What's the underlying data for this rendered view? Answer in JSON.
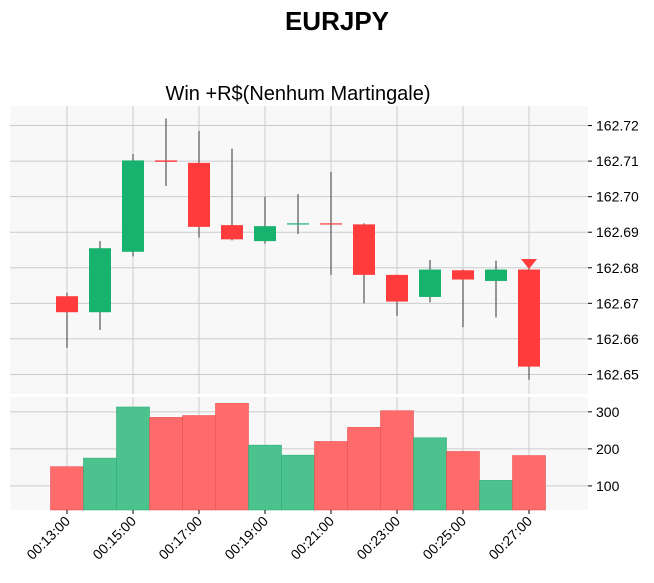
{
  "title": "EURJPY",
  "chart_data": {
    "type": "candlestick",
    "subtitle": "Win +R$(Nenhum Martingale)",
    "times": [
      "00:13:00",
      "00:14:00",
      "00:15:00",
      "00:16:00",
      "00:17:00",
      "00:18:00",
      "00:19:00",
      "00:20:00",
      "00:21:00",
      "00:22:00",
      "00:23:00",
      "00:24:00",
      "00:25:00",
      "00:26:00",
      "00:27:00"
    ],
    "x_tick_labels": [
      "00:13:00",
      "00:15:00",
      "00:17:00",
      "00:19:00",
      "00:21:00",
      "00:23:00",
      "00:25:00",
      "00:27:00"
    ],
    "open": [
      162.672,
      162.6675,
      162.6845,
      162.7102,
      162.7095,
      162.692,
      162.6875,
      162.6923,
      162.6925,
      162.6922,
      162.678,
      162.6718,
      162.6793,
      162.6763,
      162.6795
    ],
    "high": [
      162.673,
      162.6875,
      162.712,
      162.722,
      162.7185,
      162.7135,
      162.7,
      162.7007,
      162.707,
      162.6925,
      162.678,
      162.6822,
      162.6795,
      162.682,
      162.6805
    ],
    "low": [
      162.6575,
      162.6625,
      162.6832,
      162.703,
      162.6885,
      162.6877,
      162.6868,
      162.6895,
      162.678,
      162.67,
      162.6665,
      162.6703,
      162.6633,
      162.666,
      162.6485
    ],
    "close": [
      162.6675,
      162.6855,
      162.7102,
      162.7098,
      162.6915,
      162.688,
      162.6917,
      162.6925,
      162.6922,
      162.678,
      162.6705,
      162.6795,
      162.6767,
      162.6795,
      162.6522
    ],
    "volume": [
      152,
      175,
      313,
      285,
      290,
      323,
      210,
      183,
      220,
      258,
      303,
      230,
      193,
      115,
      182
    ],
    "price_ylim": [
      162.6445,
      162.7255
    ],
    "price_ticks": [
      "162.65",
      "162.66",
      "162.67",
      "162.68",
      "162.69",
      "162.70",
      "162.71",
      "162.72"
    ],
    "volume_ylim": [
      35,
      340
    ],
    "volume_ticks": [
      100,
      200,
      300
    ],
    "marker": {
      "time": "00:27:00",
      "price": 162.6805,
      "shape": "triangle-down"
    },
    "grid": true,
    "y_axis_side": "right",
    "colors": {
      "up": "#16b26e",
      "down": "#ff3b3b",
      "volume_up": "#4cc38f",
      "volume_down": "#ff6b6b",
      "wick": "#555555",
      "panel_bg": "#f8f8f8",
      "grid": "#cccccc"
    }
  }
}
